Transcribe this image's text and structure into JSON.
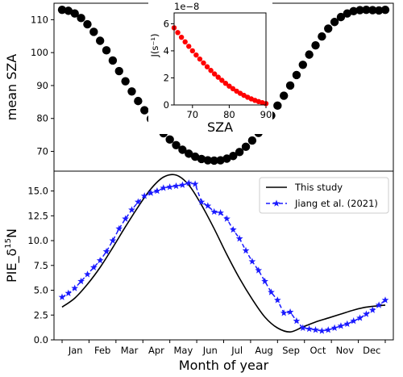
{
  "chart_data": [
    {
      "type": "scatter",
      "ylabel": "mean SZA",
      "xlabel": "",
      "ylim": [
        64,
        115
      ],
      "yticks": [
        "70",
        "80",
        "90",
        "100",
        "110"
      ],
      "series": [
        {
          "color": "#000000",
          "x": [
            1,
            2,
            3,
            4,
            5,
            6,
            7,
            8,
            9,
            10,
            11,
            12,
            13,
            14,
            15,
            16,
            17,
            18,
            19,
            20,
            21,
            22,
            23,
            24,
            25,
            26,
            27,
            28,
            29,
            30,
            31,
            32,
            33,
            34,
            35,
            36,
            37,
            38,
            39,
            40,
            41,
            42,
            43,
            44,
            45,
            46,
            47,
            48,
            49,
            50,
            51,
            52
          ],
          "values": [
            113.0,
            112.7,
            111.9,
            110.5,
            108.6,
            106.3,
            103.6,
            100.7,
            97.6,
            94.4,
            91.3,
            88.2,
            85.3,
            82.5,
            79.9,
            77.6,
            75.5,
            73.6,
            71.9,
            70.5,
            69.3,
            68.4,
            67.7,
            67.3,
            67.2,
            67.3,
            67.8,
            68.6,
            69.8,
            71.4,
            73.3,
            75.6,
            78.1,
            80.9,
            83.9,
            86.9,
            90.0,
            93.2,
            96.3,
            99.4,
            102.2,
            104.9,
            107.3,
            109.3,
            110.8,
            111.9,
            112.6,
            112.9,
            113.0,
            112.9,
            112.8,
            113.0
          ]
        }
      ],
      "inset": {
        "type": "scatter",
        "xlabel": "SZA",
        "ylabel": "J(s⁻¹)",
        "exponent_label": "1e−8",
        "xlim": [
          65,
          90
        ],
        "ylim": [
          0,
          6.8
        ],
        "xticks": [
          "70",
          "80",
          "90"
        ],
        "yticks": [
          "0",
          "2",
          "4",
          "6"
        ],
        "color": "#ff0000",
        "x": [
          65,
          66,
          67,
          68,
          69,
          70,
          71,
          72,
          73,
          74,
          75,
          76,
          77,
          78,
          79,
          80,
          81,
          82,
          83,
          84,
          85,
          86,
          87,
          88,
          89,
          90
        ],
        "values": [
          5.7,
          5.35,
          5.0,
          4.66,
          4.33,
          4.0,
          3.69,
          3.39,
          3.1,
          2.82,
          2.55,
          2.29,
          2.05,
          1.82,
          1.6,
          1.39,
          1.2,
          1.02,
          0.86,
          0.71,
          0.57,
          0.45,
          0.34,
          0.25,
          0.17,
          0.1
        ]
      }
    },
    {
      "type": "line",
      "ylabel": "PIE_δ",
      "ylabel_sup": "15",
      "ylabel_end": "N",
      "xlabel": "Month of year",
      "ylim": [
        0,
        17
      ],
      "yticks": [
        "0.0",
        "2.5",
        "5.0",
        "7.5",
        "10.0",
        "12.5",
        "15.0"
      ],
      "categories": [
        "Jan",
        "Feb",
        "Mar",
        "Apr",
        "May",
        "Jun",
        "Jul",
        "Aug",
        "Sep",
        "Oct",
        "Nov",
        "Dec"
      ],
      "legend_position": "top-right",
      "series": [
        {
          "name": "This study",
          "color": "#000000",
          "style": "solid",
          "x": [
            1,
            3,
            5,
            7,
            9,
            11,
            13,
            15,
            17,
            19,
            21,
            23,
            25,
            27,
            29,
            31,
            33,
            35,
            37,
            39,
            41,
            43,
            45,
            47,
            49,
            52
          ],
          "values": [
            3.3,
            4.2,
            5.6,
            7.3,
            9.3,
            11.4,
            13.4,
            15.2,
            16.4,
            16.6,
            15.6,
            13.6,
            11.2,
            8.6,
            6.2,
            4.1,
            2.3,
            1.2,
            0.8,
            1.3,
            1.8,
            2.2,
            2.6,
            3.0,
            3.3,
            3.5
          ]
        },
        {
          "name": "Jiang et al. (2021)",
          "color": "#1a1aff",
          "style": "dashed",
          "marker": "star",
          "x": [
            1,
            2,
            3,
            4,
            5,
            6,
            7,
            8,
            9,
            10,
            11,
            12,
            13,
            14,
            15,
            16,
            17,
            18,
            19,
            20,
            21,
            22,
            23,
            24,
            25,
            26,
            27,
            28,
            29,
            30,
            31,
            32,
            33,
            34,
            35,
            36,
            37,
            38,
            39,
            40,
            41,
            42,
            43,
            44,
            45,
            46,
            47,
            48,
            49,
            50,
            51,
            52
          ],
          "values": [
            4.3,
            4.7,
            5.2,
            5.9,
            6.6,
            7.3,
            8.0,
            8.9,
            10.0,
            11.2,
            12.2,
            13.1,
            13.9,
            14.5,
            14.8,
            15.0,
            15.3,
            15.4,
            15.5,
            15.6,
            15.8,
            15.7,
            13.9,
            13.5,
            12.9,
            12.8,
            12.2,
            11.1,
            10.2,
            9.0,
            7.9,
            7.0,
            5.9,
            4.8,
            4.0,
            2.7,
            2.8,
            1.9,
            1.2,
            1.1,
            1.0,
            0.9,
            1.0,
            1.2,
            1.4,
            1.6,
            1.9,
            2.2,
            2.6,
            3.0,
            3.5,
            4.0
          ]
        }
      ]
    }
  ]
}
